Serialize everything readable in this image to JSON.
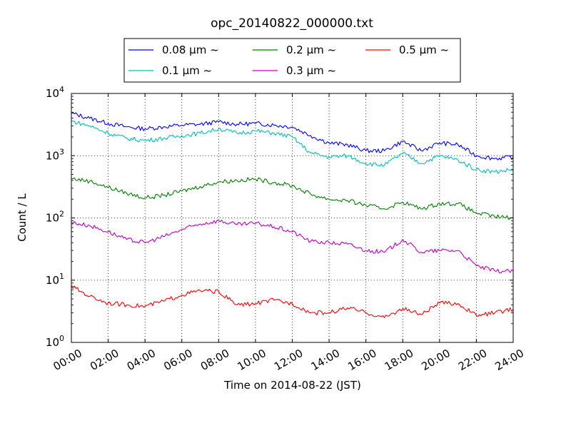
{
  "chart_data": {
    "type": "line",
    "title": "opc_20140822_000000.txt",
    "xlabel": "Time on 2014-08-22 (JST)",
    "ylabel": "Count / L",
    "yscale": "log",
    "ylim": [
      1,
      10000
    ],
    "xlim": [
      "00:00",
      "24:00"
    ],
    "grid": true,
    "legend_placement": "top-center, above plot",
    "x_ticks": [
      "00:00",
      "02:00",
      "04:00",
      "06:00",
      "08:00",
      "10:00",
      "12:00",
      "14:00",
      "16:00",
      "18:00",
      "20:00",
      "22:00",
      "24:00"
    ],
    "y_ticks": [
      {
        "base": "10",
        "exp": "0",
        "value": 1
      },
      {
        "base": "10",
        "exp": "1",
        "value": 10
      },
      {
        "base": "10",
        "exp": "2",
        "value": 100
      },
      {
        "base": "10",
        "exp": "3",
        "value": 1000
      },
      {
        "base": "10",
        "exp": "4",
        "value": 10000
      }
    ],
    "x": [
      "00:00",
      "01:00",
      "02:00",
      "03:00",
      "04:00",
      "05:00",
      "06:00",
      "07:00",
      "08:00",
      "09:00",
      "10:00",
      "11:00",
      "12:00",
      "13:00",
      "14:00",
      "15:00",
      "16:00",
      "17:00",
      "18:00",
      "19:00",
      "20:00",
      "21:00",
      "22:00",
      "23:00",
      "24:00"
    ],
    "series": [
      {
        "name": "0.08 μm ~",
        "color": "#0000ff",
        "values": [
          4800,
          4000,
          3300,
          2900,
          2700,
          2900,
          3100,
          3200,
          3500,
          3200,
          3300,
          3100,
          2900,
          2100,
          1600,
          1500,
          1200,
          1200,
          1700,
          1200,
          1600,
          1500,
          1000,
          900,
          950
        ]
      },
      {
        "name": "0.1 μm ~",
        "color": "#00bfbf",
        "values": [
          3600,
          3000,
          2300,
          1900,
          1750,
          1900,
          2100,
          2300,
          2700,
          2300,
          2500,
          2300,
          2000,
          1100,
          950,
          1000,
          750,
          700,
          1100,
          750,
          1000,
          850,
          600,
          550,
          600
        ]
      },
      {
        "name": "0.2 μm ~",
        "color": "#008000",
        "values": [
          430,
          390,
          310,
          250,
          210,
          230,
          270,
          320,
          380,
          400,
          420,
          370,
          330,
          240,
          200,
          190,
          160,
          140,
          180,
          140,
          170,
          170,
          120,
          105,
          100
        ]
      },
      {
        "name": "0.3 μm ~",
        "color": "#bf00bf",
        "values": [
          85,
          75,
          60,
          45,
          40,
          50,
          65,
          80,
          90,
          78,
          82,
          72,
          60,
          42,
          40,
          38,
          30,
          28,
          45,
          28,
          30,
          30,
          17,
          14,
          14
        ]
      },
      {
        "name": "0.5 μm ~",
        "color": "#ff0000",
        "values": [
          8,
          5.5,
          4.3,
          4.0,
          3.8,
          4.6,
          5.8,
          6.8,
          6.5,
          4.0,
          4.2,
          4.8,
          4.2,
          3.0,
          3.0,
          3.6,
          3.0,
          2.5,
          3.5,
          2.8,
          4.3,
          4.2,
          2.7,
          3.0,
          3.4
        ]
      }
    ]
  }
}
